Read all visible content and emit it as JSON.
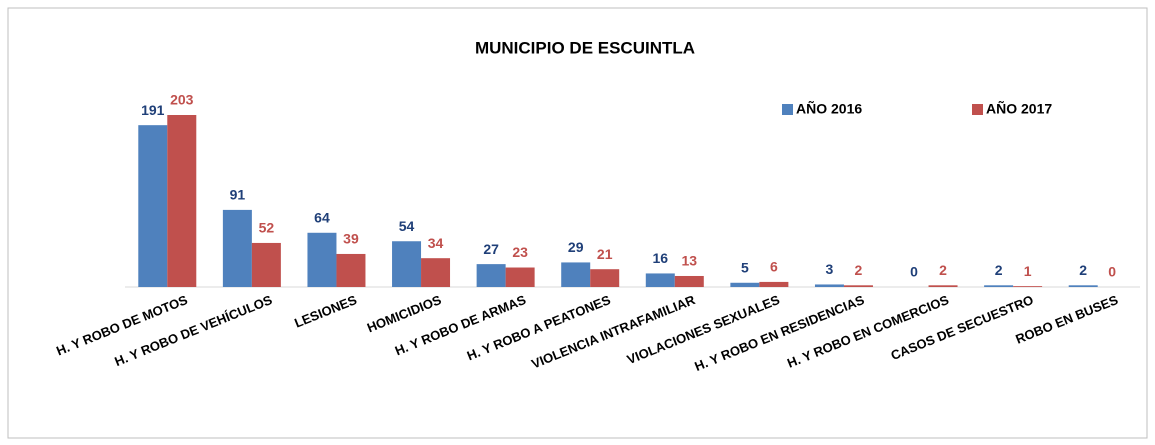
{
  "chart_data": {
    "type": "bar",
    "title": "MUNICIPIO DE ESCUINTLA",
    "categories": [
      "H. Y ROBO DE MOTOS",
      "H. Y ROBO DE VEHÍCULOS",
      "LESIONES",
      "HOMICIDIOS",
      "H. Y ROBO DE ARMAS",
      "H. Y ROBO A PEATONES",
      "VIOLENCIA INTRAFAMILIAR",
      "VIOLACIONES SEXUALES",
      "H. Y ROBO EN RESIDENCIAS",
      "H. Y ROBO EN COMERCIOS",
      "CASOS DE SECUESTRO",
      "ROBO EN BUSES"
    ],
    "series": [
      {
        "name": "AÑO 2016",
        "color": "#4f81bd",
        "values": [
          191,
          91,
          64,
          54,
          27,
          29,
          16,
          5,
          3,
          0,
          2,
          2
        ]
      },
      {
        "name": "AÑO 2017",
        "color": "#c0504d",
        "values": [
          203,
          52,
          39,
          34,
          23,
          21,
          13,
          6,
          2,
          2,
          1,
          0
        ]
      }
    ],
    "legend": "top-right"
  }
}
